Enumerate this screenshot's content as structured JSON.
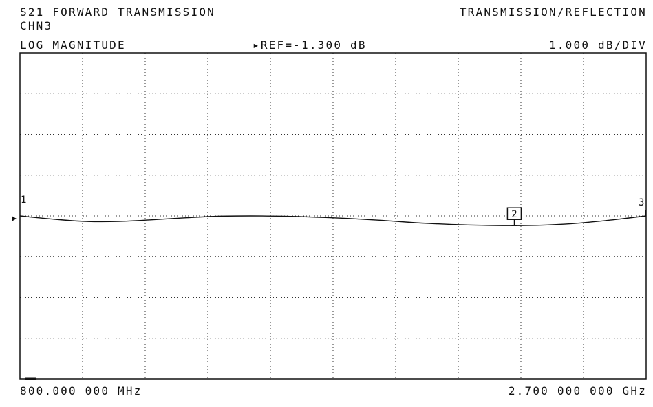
{
  "header": {
    "title": "S21 FORWARD TRANSMISSION",
    "mode": "TRANSMISSION/REFLECTION",
    "channel": "CHN3",
    "format": "LOG MAGNITUDE",
    "ref_label": "REF=-1.300 dB",
    "scale": "1.000 dB/DIV"
  },
  "footer": {
    "start": "800.000 000 MHz",
    "stop": "2.700 000 000 GHz"
  },
  "chart_data": {
    "type": "line",
    "title": "S21 FORWARD TRANSMISSION",
    "xlabel": "",
    "ylabel": "",
    "x_unit": "MHz",
    "y_unit": "dB",
    "xlim": [
      800,
      2700
    ],
    "ylim": [
      -6.3,
      3.7
    ],
    "reference_level": -1.3,
    "grid": true,
    "series": [
      {
        "x": [
          800,
          900,
          1000,
          1100,
          1200,
          1300,
          1400,
          1500,
          1600,
          1700,
          1800,
          1900,
          2000,
          2100,
          2200,
          2300,
          2400,
          2500,
          2600,
          2700
        ],
        "y": [
          -1.3,
          -1.4,
          -1.47,
          -1.47,
          -1.42,
          -1.36,
          -1.31,
          -1.3,
          -1.31,
          -1.34,
          -1.38,
          -1.44,
          -1.51,
          -1.56,
          -1.59,
          -1.6,
          -1.58,
          -1.52,
          -1.42,
          -1.3
        ]
      }
    ],
    "markers": [
      {
        "label": "1",
        "x": 800,
        "y": -1.3
      },
      {
        "label": "2",
        "x": 2300,
        "y": -1.6
      },
      {
        "label": "3",
        "x": 2700,
        "y": -1.3
      }
    ]
  }
}
